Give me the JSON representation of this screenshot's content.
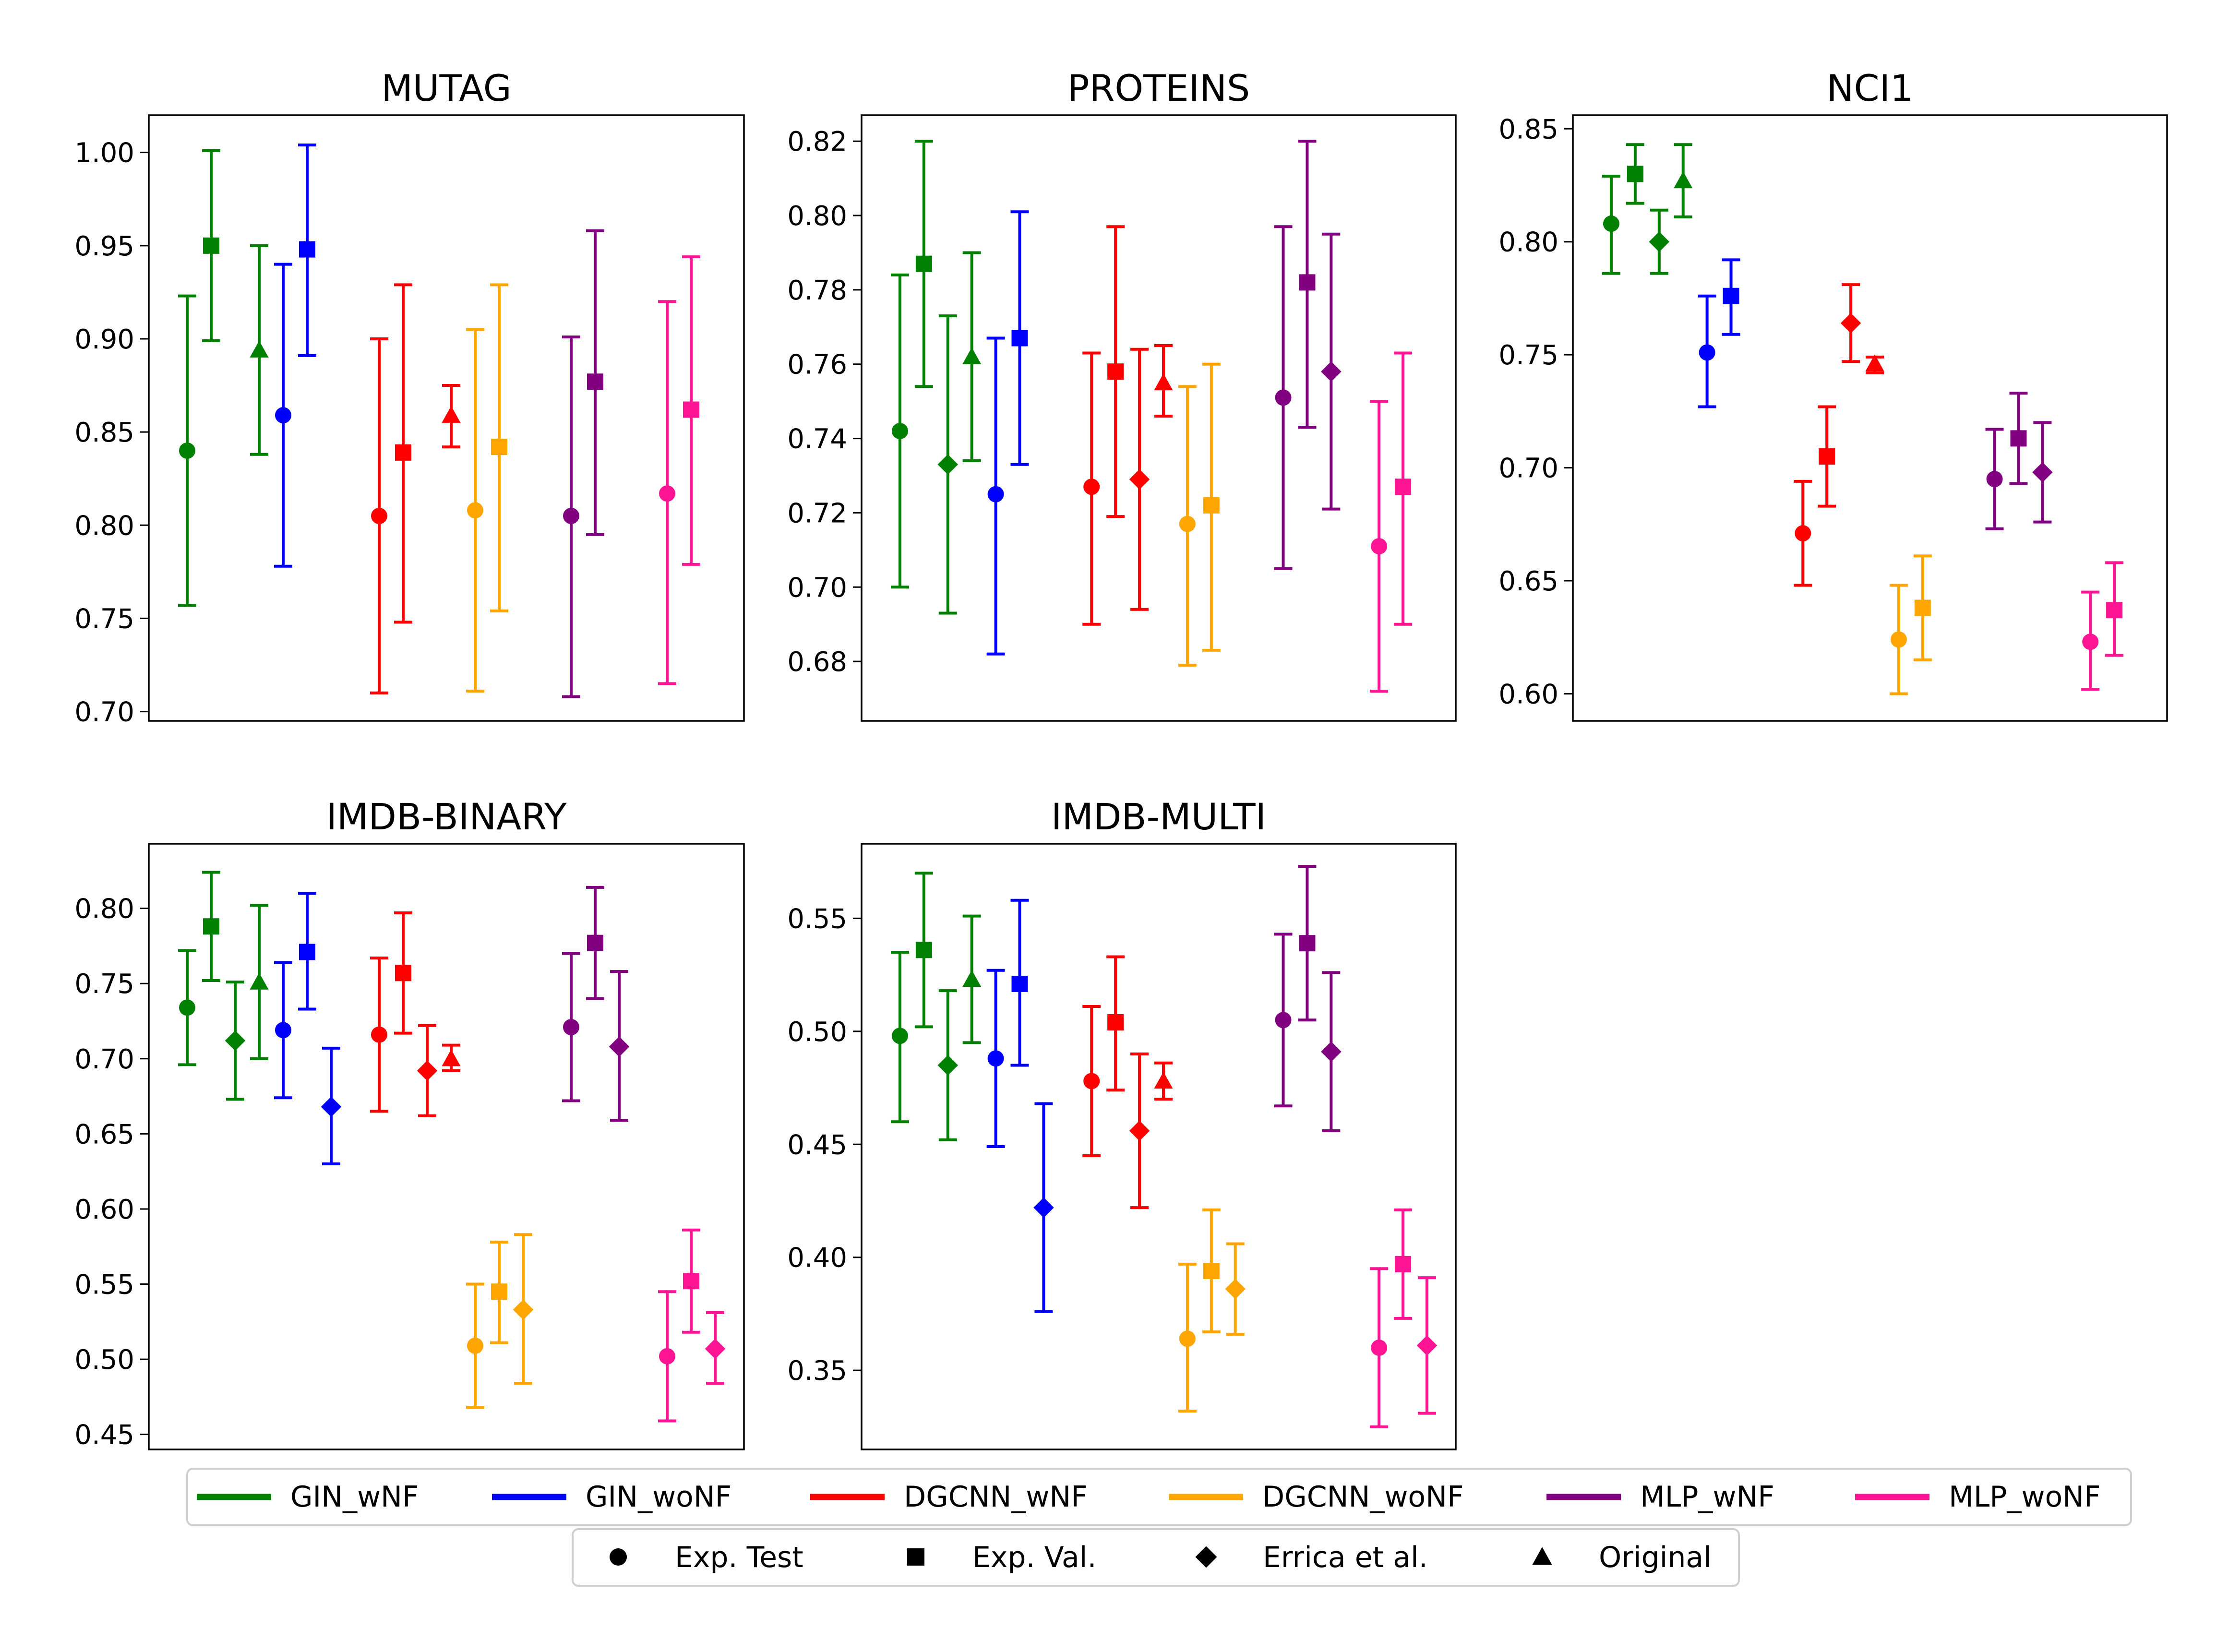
{
  "colors": {
    "GIN_wNF": "#008000",
    "GIN_woNF": "#0000ff",
    "DGCNN_wNF": "#ff0000",
    "DGCNN_woNF": "#ffa500",
    "MLP_wNF": "#800080",
    "MLP_woNF": "#ff1493"
  },
  "legend_models": [
    {
      "key": "GIN_wNF",
      "label": "GIN_wNF"
    },
    {
      "key": "GIN_woNF",
      "label": "GIN_woNF"
    },
    {
      "key": "DGCNN_wNF",
      "label": "DGCNN_wNF"
    },
    {
      "key": "DGCNN_woNF",
      "label": "DGCNN_woNF"
    },
    {
      "key": "MLP_wNF",
      "label": "MLP_wNF"
    },
    {
      "key": "MLP_woNF",
      "label": "MLP_woNF"
    }
  ],
  "legend_markers": [
    {
      "marker": "circle",
      "label": "Exp. Test"
    },
    {
      "marker": "square",
      "label": "Exp. Val."
    },
    {
      "marker": "diamond",
      "label": "Errica et al."
    },
    {
      "marker": "triangle",
      "label": "Original"
    }
  ],
  "chart_data": [
    {
      "type": "errorbar",
      "title": "MUTAG",
      "xlabel": "",
      "ylabel": "",
      "ylim": [
        0.695,
        1.02
      ],
      "yticks": [
        "0.70",
        "0.75",
        "0.80",
        "0.85",
        "0.90",
        "0.95",
        "1.00"
      ],
      "slots": 22,
      "points": [
        {
          "model": "GIN_wNF",
          "marker": "circle",
          "slot": 1,
          "value": 0.84,
          "low": 0.757,
          "high": 0.923
        },
        {
          "model": "GIN_wNF",
          "marker": "square",
          "slot": 2,
          "value": 0.95,
          "low": 0.899,
          "high": 1.001
        },
        {
          "model": "GIN_wNF",
          "marker": "triangle",
          "slot": 4,
          "value": 0.894,
          "low": 0.838,
          "high": 0.95
        },
        {
          "model": "GIN_woNF",
          "marker": "circle",
          "slot": 5,
          "value": 0.859,
          "low": 0.778,
          "high": 0.94
        },
        {
          "model": "GIN_woNF",
          "marker": "square",
          "slot": 6,
          "value": 0.948,
          "low": 0.891,
          "high": 1.004
        },
        {
          "model": "DGCNN_wNF",
          "marker": "circle",
          "slot": 9,
          "value": 0.805,
          "low": 0.71,
          "high": 0.9
        },
        {
          "model": "DGCNN_wNF",
          "marker": "square",
          "slot": 10,
          "value": 0.839,
          "low": 0.748,
          "high": 0.929
        },
        {
          "model": "DGCNN_wNF",
          "marker": "triangle",
          "slot": 12,
          "value": 0.859,
          "low": 0.842,
          "high": 0.875
        },
        {
          "model": "DGCNN_woNF",
          "marker": "circle",
          "slot": 13,
          "value": 0.808,
          "low": 0.711,
          "high": 0.905
        },
        {
          "model": "DGCNN_woNF",
          "marker": "square",
          "slot": 14,
          "value": 0.842,
          "low": 0.754,
          "high": 0.929
        },
        {
          "model": "MLP_wNF",
          "marker": "circle",
          "slot": 17,
          "value": 0.805,
          "low": 0.708,
          "high": 0.901
        },
        {
          "model": "MLP_wNF",
          "marker": "square",
          "slot": 18,
          "value": 0.877,
          "low": 0.795,
          "high": 0.958
        },
        {
          "model": "MLP_woNF",
          "marker": "circle",
          "slot": 21,
          "value": 0.817,
          "low": 0.715,
          "high": 0.92
        },
        {
          "model": "MLP_woNF",
          "marker": "square",
          "slot": 22,
          "value": 0.862,
          "low": 0.779,
          "high": 0.944
        }
      ]
    },
    {
      "type": "errorbar",
      "title": "PROTEINS",
      "xlabel": "",
      "ylabel": "",
      "ylim": [
        0.664,
        0.827
      ],
      "yticks": [
        "0.68",
        "0.70",
        "0.72",
        "0.74",
        "0.76",
        "0.78",
        "0.80",
        "0.82"
      ],
      "slots": 22,
      "points": [
        {
          "model": "GIN_wNF",
          "marker": "circle",
          "slot": 1,
          "value": 0.742,
          "low": 0.7,
          "high": 0.784
        },
        {
          "model": "GIN_wNF",
          "marker": "square",
          "slot": 2,
          "value": 0.787,
          "low": 0.754,
          "high": 0.82
        },
        {
          "model": "GIN_wNF",
          "marker": "diamond",
          "slot": 3,
          "value": 0.733,
          "low": 0.693,
          "high": 0.773
        },
        {
          "model": "GIN_wNF",
          "marker": "triangle",
          "slot": 4,
          "value": 0.762,
          "low": 0.734,
          "high": 0.79
        },
        {
          "model": "GIN_woNF",
          "marker": "circle",
          "slot": 5,
          "value": 0.725,
          "low": 0.682,
          "high": 0.767
        },
        {
          "model": "GIN_woNF",
          "marker": "square",
          "slot": 6,
          "value": 0.767,
          "low": 0.733,
          "high": 0.801
        },
        {
          "model": "DGCNN_wNF",
          "marker": "circle",
          "slot": 9,
          "value": 0.727,
          "low": 0.69,
          "high": 0.763
        },
        {
          "model": "DGCNN_wNF",
          "marker": "square",
          "slot": 10,
          "value": 0.758,
          "low": 0.719,
          "high": 0.797
        },
        {
          "model": "DGCNN_wNF",
          "marker": "diamond",
          "slot": 11,
          "value": 0.729,
          "low": 0.694,
          "high": 0.764
        },
        {
          "model": "DGCNN_wNF",
          "marker": "triangle",
          "slot": 12,
          "value": 0.755,
          "low": 0.746,
          "high": 0.765
        },
        {
          "model": "DGCNN_woNF",
          "marker": "circle",
          "slot": 13,
          "value": 0.717,
          "low": 0.679,
          "high": 0.754
        },
        {
          "model": "DGCNN_woNF",
          "marker": "square",
          "slot": 14,
          "value": 0.722,
          "low": 0.683,
          "high": 0.76
        },
        {
          "model": "MLP_wNF",
          "marker": "circle",
          "slot": 17,
          "value": 0.751,
          "low": 0.705,
          "high": 0.797
        },
        {
          "model": "MLP_wNF",
          "marker": "square",
          "slot": 18,
          "value": 0.782,
          "low": 0.743,
          "high": 0.82
        },
        {
          "model": "MLP_wNF",
          "marker": "diamond",
          "slot": 19,
          "value": 0.758,
          "low": 0.721,
          "high": 0.795
        },
        {
          "model": "MLP_woNF",
          "marker": "circle",
          "slot": 21,
          "value": 0.711,
          "low": 0.672,
          "high": 0.75
        },
        {
          "model": "MLP_woNF",
          "marker": "square",
          "slot": 22,
          "value": 0.727,
          "low": 0.69,
          "high": 0.763
        }
      ]
    },
    {
      "type": "errorbar",
      "title": "NCI1",
      "xlabel": "",
      "ylabel": "",
      "ylim": [
        0.588,
        0.856
      ],
      "yticks": [
        "0.60",
        "0.65",
        "0.70",
        "0.75",
        "0.80",
        "0.85"
      ],
      "slots": 22,
      "points": [
        {
          "model": "GIN_wNF",
          "marker": "circle",
          "slot": 1,
          "value": 0.808,
          "low": 0.786,
          "high": 0.829
        },
        {
          "model": "GIN_wNF",
          "marker": "square",
          "slot": 2,
          "value": 0.83,
          "low": 0.817,
          "high": 0.843
        },
        {
          "model": "GIN_wNF",
          "marker": "diamond",
          "slot": 3,
          "value": 0.8,
          "low": 0.786,
          "high": 0.814
        },
        {
          "model": "GIN_wNF",
          "marker": "triangle",
          "slot": 4,
          "value": 0.827,
          "low": 0.811,
          "high": 0.843
        },
        {
          "model": "GIN_woNF",
          "marker": "circle",
          "slot": 5,
          "value": 0.751,
          "low": 0.727,
          "high": 0.776
        },
        {
          "model": "GIN_woNF",
          "marker": "square",
          "slot": 6,
          "value": 0.776,
          "low": 0.759,
          "high": 0.792
        },
        {
          "model": "DGCNN_wNF",
          "marker": "circle",
          "slot": 9,
          "value": 0.671,
          "low": 0.648,
          "high": 0.694
        },
        {
          "model": "DGCNN_wNF",
          "marker": "square",
          "slot": 10,
          "value": 0.705,
          "low": 0.683,
          "high": 0.727
        },
        {
          "model": "DGCNN_wNF",
          "marker": "diamond",
          "slot": 11,
          "value": 0.764,
          "low": 0.747,
          "high": 0.781
        },
        {
          "model": "DGCNN_wNF",
          "marker": "triangle",
          "slot": 12,
          "value": 0.746,
          "low": 0.742,
          "high": 0.749
        },
        {
          "model": "DGCNN_woNF",
          "marker": "circle",
          "slot": 13,
          "value": 0.624,
          "low": 0.6,
          "high": 0.648
        },
        {
          "model": "DGCNN_woNF",
          "marker": "square",
          "slot": 14,
          "value": 0.638,
          "low": 0.615,
          "high": 0.661
        },
        {
          "model": "MLP_wNF",
          "marker": "circle",
          "slot": 17,
          "value": 0.695,
          "low": 0.673,
          "high": 0.717
        },
        {
          "model": "MLP_wNF",
          "marker": "square",
          "slot": 18,
          "value": 0.713,
          "low": 0.693,
          "high": 0.733
        },
        {
          "model": "MLP_wNF",
          "marker": "diamond",
          "slot": 19,
          "value": 0.698,
          "low": 0.676,
          "high": 0.72
        },
        {
          "model": "MLP_woNF",
          "marker": "circle",
          "slot": 21,
          "value": 0.623,
          "low": 0.602,
          "high": 0.645
        },
        {
          "model": "MLP_woNF",
          "marker": "square",
          "slot": 22,
          "value": 0.637,
          "low": 0.617,
          "high": 0.658
        }
      ]
    },
    {
      "type": "errorbar",
      "title": "IMDB-BINARY",
      "xlabel": "",
      "ylabel": "",
      "ylim": [
        0.44,
        0.843
      ],
      "yticks": [
        "0.45",
        "0.50",
        "0.55",
        "0.60",
        "0.65",
        "0.70",
        "0.75",
        "0.80"
      ],
      "slots": 22,
      "points": [
        {
          "model": "GIN_wNF",
          "marker": "circle",
          "slot": 1,
          "value": 0.734,
          "low": 0.696,
          "high": 0.772
        },
        {
          "model": "GIN_wNF",
          "marker": "square",
          "slot": 2,
          "value": 0.788,
          "low": 0.752,
          "high": 0.824
        },
        {
          "model": "GIN_wNF",
          "marker": "diamond",
          "slot": 3,
          "value": 0.712,
          "low": 0.673,
          "high": 0.751
        },
        {
          "model": "GIN_wNF",
          "marker": "triangle",
          "slot": 4,
          "value": 0.751,
          "low": 0.7,
          "high": 0.802
        },
        {
          "model": "GIN_woNF",
          "marker": "circle",
          "slot": 5,
          "value": 0.719,
          "low": 0.674,
          "high": 0.764
        },
        {
          "model": "GIN_woNF",
          "marker": "square",
          "slot": 6,
          "value": 0.771,
          "low": 0.733,
          "high": 0.81
        },
        {
          "model": "GIN_woNF",
          "marker": "diamond",
          "slot": 7,
          "value": 0.668,
          "low": 0.63,
          "high": 0.707
        },
        {
          "model": "DGCNN_wNF",
          "marker": "circle",
          "slot": 9,
          "value": 0.716,
          "low": 0.665,
          "high": 0.767
        },
        {
          "model": "DGCNN_wNF",
          "marker": "square",
          "slot": 10,
          "value": 0.757,
          "low": 0.717,
          "high": 0.797
        },
        {
          "model": "DGCNN_wNF",
          "marker": "diamond",
          "slot": 11,
          "value": 0.692,
          "low": 0.662,
          "high": 0.722
        },
        {
          "model": "DGCNN_wNF",
          "marker": "triangle",
          "slot": 12,
          "value": 0.7,
          "low": 0.692,
          "high": 0.709
        },
        {
          "model": "DGCNN_woNF",
          "marker": "circle",
          "slot": 13,
          "value": 0.509,
          "low": 0.468,
          "high": 0.55
        },
        {
          "model": "DGCNN_woNF",
          "marker": "square",
          "slot": 14,
          "value": 0.545,
          "low": 0.511,
          "high": 0.578
        },
        {
          "model": "DGCNN_woNF",
          "marker": "diamond",
          "slot": 15,
          "value": 0.533,
          "low": 0.484,
          "high": 0.583
        },
        {
          "model": "MLP_wNF",
          "marker": "circle",
          "slot": 17,
          "value": 0.721,
          "low": 0.672,
          "high": 0.77
        },
        {
          "model": "MLP_wNF",
          "marker": "square",
          "slot": 18,
          "value": 0.777,
          "low": 0.74,
          "high": 0.814
        },
        {
          "model": "MLP_wNF",
          "marker": "diamond",
          "slot": 19,
          "value": 0.708,
          "low": 0.659,
          "high": 0.758
        },
        {
          "model": "MLP_woNF",
          "marker": "circle",
          "slot": 21,
          "value": 0.502,
          "low": 0.459,
          "high": 0.545
        },
        {
          "model": "MLP_woNF",
          "marker": "square",
          "slot": 22,
          "value": 0.552,
          "low": 0.518,
          "high": 0.586
        },
        {
          "model": "MLP_woNF",
          "marker": "diamond",
          "slot": 23,
          "value": 0.507,
          "low": 0.484,
          "high": 0.531
        }
      ]
    },
    {
      "type": "errorbar",
      "title": "IMDB-MULTI",
      "xlabel": "",
      "ylabel": "",
      "ylim": [
        0.315,
        0.583
      ],
      "yticks": [
        "0.35",
        "0.40",
        "0.45",
        "0.50",
        "0.55"
      ],
      "slots": 22,
      "points": [
        {
          "model": "GIN_wNF",
          "marker": "circle",
          "slot": 1,
          "value": 0.498,
          "low": 0.46,
          "high": 0.535
        },
        {
          "model": "GIN_wNF",
          "marker": "square",
          "slot": 2,
          "value": 0.536,
          "low": 0.502,
          "high": 0.57
        },
        {
          "model": "GIN_wNF",
          "marker": "diamond",
          "slot": 3,
          "value": 0.485,
          "low": 0.452,
          "high": 0.518
        },
        {
          "model": "GIN_wNF",
          "marker": "triangle",
          "slot": 4,
          "value": 0.523,
          "low": 0.495,
          "high": 0.551
        },
        {
          "model": "GIN_woNF",
          "marker": "circle",
          "slot": 5,
          "value": 0.488,
          "low": 0.449,
          "high": 0.527
        },
        {
          "model": "GIN_woNF",
          "marker": "square",
          "slot": 6,
          "value": 0.521,
          "low": 0.485,
          "high": 0.558
        },
        {
          "model": "GIN_woNF",
          "marker": "diamond",
          "slot": 7,
          "value": 0.422,
          "low": 0.376,
          "high": 0.468
        },
        {
          "model": "DGCNN_wNF",
          "marker": "circle",
          "slot": 9,
          "value": 0.478,
          "low": 0.445,
          "high": 0.511
        },
        {
          "model": "DGCNN_wNF",
          "marker": "square",
          "slot": 10,
          "value": 0.504,
          "low": 0.474,
          "high": 0.533
        },
        {
          "model": "DGCNN_wNF",
          "marker": "diamond",
          "slot": 11,
          "value": 0.456,
          "low": 0.422,
          "high": 0.49
        },
        {
          "model": "DGCNN_wNF",
          "marker": "triangle",
          "slot": 12,
          "value": 0.478,
          "low": 0.47,
          "high": 0.486
        },
        {
          "model": "DGCNN_woNF",
          "marker": "circle",
          "slot": 13,
          "value": 0.364,
          "low": 0.332,
          "high": 0.397
        },
        {
          "model": "DGCNN_woNF",
          "marker": "square",
          "slot": 14,
          "value": 0.394,
          "low": 0.367,
          "high": 0.421
        },
        {
          "model": "DGCNN_woNF",
          "marker": "diamond",
          "slot": 15,
          "value": 0.386,
          "low": 0.366,
          "high": 0.406
        },
        {
          "model": "MLP_wNF",
          "marker": "circle",
          "slot": 17,
          "value": 0.505,
          "low": 0.467,
          "high": 0.543
        },
        {
          "model": "MLP_wNF",
          "marker": "square",
          "slot": 18,
          "value": 0.539,
          "low": 0.505,
          "high": 0.573
        },
        {
          "model": "MLP_wNF",
          "marker": "diamond",
          "slot": 19,
          "value": 0.491,
          "low": 0.456,
          "high": 0.526
        },
        {
          "model": "MLP_woNF",
          "marker": "circle",
          "slot": 21,
          "value": 0.36,
          "low": 0.325,
          "high": 0.395
        },
        {
          "model": "MLP_woNF",
          "marker": "square",
          "slot": 22,
          "value": 0.397,
          "low": 0.373,
          "high": 0.421
        },
        {
          "model": "MLP_woNF",
          "marker": "diamond",
          "slot": 23,
          "value": 0.361,
          "low": 0.331,
          "high": 0.391
        }
      ]
    }
  ]
}
